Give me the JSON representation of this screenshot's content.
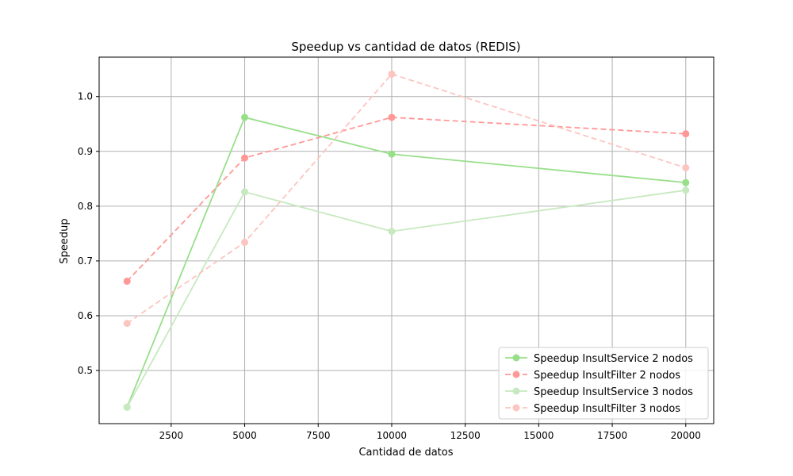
{
  "chart_data": {
    "type": "line",
    "title": "Speedup vs cantidad de datos (REDIS)",
    "xlabel": "Cantidad de datos",
    "ylabel": "Speedup",
    "x": [
      1000,
      5000,
      10000,
      20000
    ],
    "xlim": [
      50,
      20950
    ],
    "ylim": [
      0.403,
      1.072
    ],
    "xticks": [
      2500,
      5000,
      7500,
      10000,
      12500,
      15000,
      17500,
      20000
    ],
    "yticks": [
      0.5,
      0.6,
      0.7,
      0.8,
      0.9,
      1.0
    ],
    "xtick_labels": [
      "2500",
      "5000",
      "7500",
      "10000",
      "12500",
      "15000",
      "17500",
      "20000"
    ],
    "ytick_labels": [
      "0.5",
      "0.6",
      "0.7",
      "0.8",
      "0.9",
      "1.0"
    ],
    "grid": true,
    "legend_position": "lower-right",
    "series": [
      {
        "name": "Speedup InsultService 2 nodos",
        "values": [
          0.433,
          0.962,
          0.895,
          0.843
        ],
        "color": "#98df8a",
        "dashed": false
      },
      {
        "name": "Speedup InsultFilter 2 nodos",
        "values": [
          0.663,
          0.888,
          0.962,
          0.932
        ],
        "color": "#ff9896",
        "dashed": true
      },
      {
        "name": "Speedup InsultService 3 nodos",
        "values": [
          0.433,
          0.826,
          0.754,
          0.829
        ],
        "color": "#c7e9c0",
        "dashed": false
      },
      {
        "name": "Speedup InsultFilter 3 nodos",
        "values": [
          0.586,
          0.734,
          1.041,
          0.87
        ],
        "color": "#fcc5c0",
        "dashed": true
      }
    ]
  }
}
